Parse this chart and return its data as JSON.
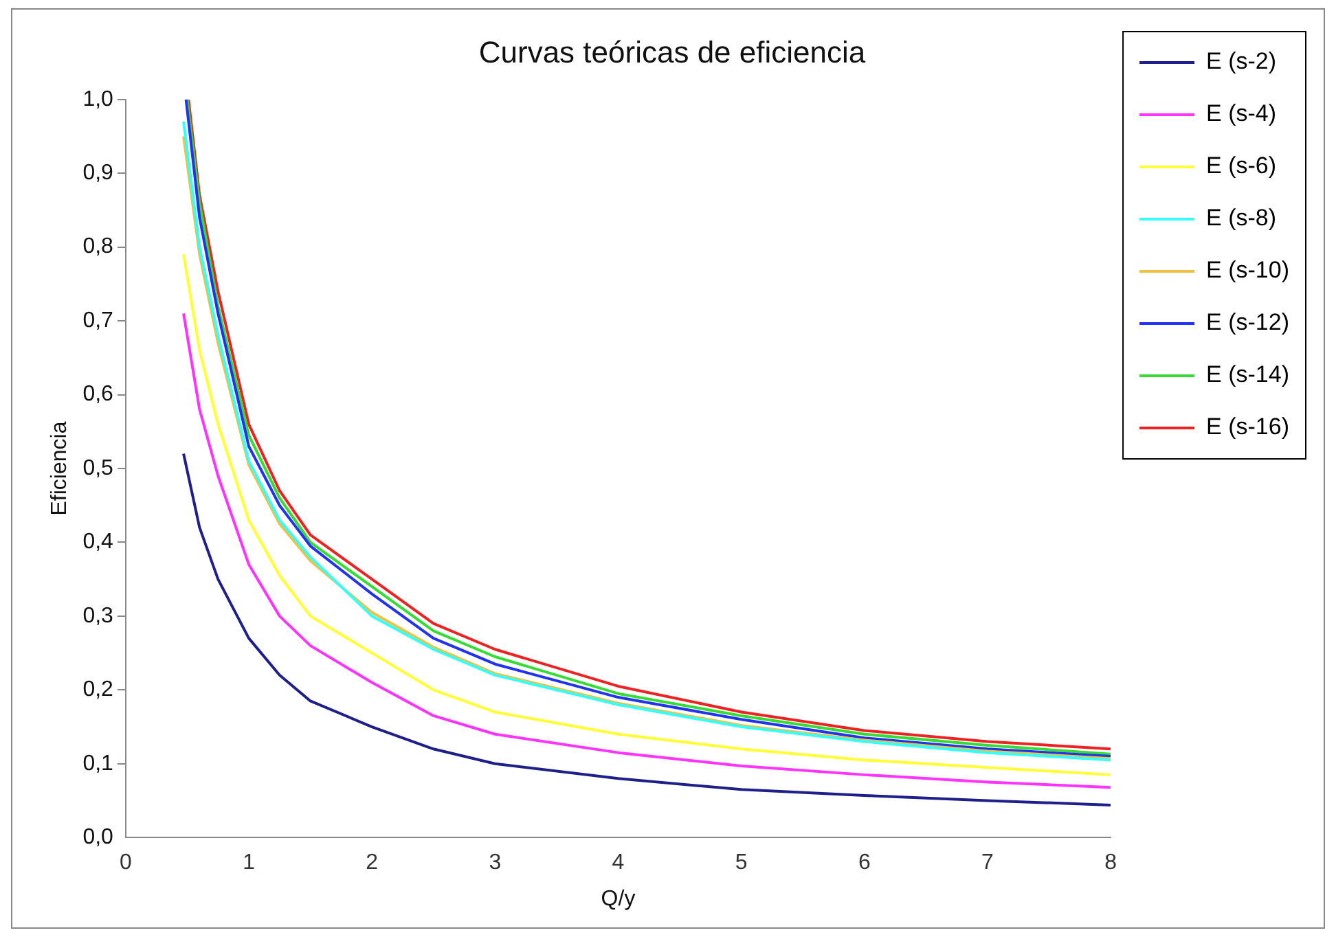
{
  "chart_data": {
    "type": "line",
    "title": "Curvas teóricas de eficiencia",
    "xlabel": "Q/y",
    "ylabel": "Eficiencia",
    "xlim": [
      0,
      8
    ],
    "xticks": [
      0,
      1,
      2,
      3,
      4,
      5,
      6,
      7,
      8
    ],
    "ylim": [
      0,
      1
    ],
    "yticks": [
      {
        "value": 0,
        "label": "0,0"
      },
      {
        "value": 0.1,
        "label": "0,1"
      },
      {
        "value": 0.2,
        "label": "0,2"
      },
      {
        "value": 0.3,
        "label": "0,3"
      },
      {
        "value": 0.4,
        "label": "0,4"
      },
      {
        "value": 0.5,
        "label": "0,5"
      },
      {
        "value": 0.6,
        "label": "0,6"
      },
      {
        "value": 0.7,
        "label": "0,7"
      },
      {
        "value": 0.8,
        "label": "0,8"
      },
      {
        "value": 0.9,
        "label": "0,9"
      },
      {
        "value": 1,
        "label": "1,0"
      }
    ],
    "grid": false,
    "legend": "right",
    "marker": "none",
    "line_style": "solid",
    "series": [
      {
        "name": "E (s-2)",
        "color": "#1f1f8c",
        "x": [
          0.47,
          0.6,
          0.75,
          1,
          1.25,
          1.5,
          2,
          2.5,
          3,
          4,
          5,
          6,
          7,
          8
        ],
        "values": [
          0.52,
          0.42,
          0.35,
          0.27,
          0.22,
          0.185,
          0.15,
          0.12,
          0.1,
          0.08,
          0.065,
          0.057,
          0.05,
          0.044
        ]
      },
      {
        "name": "E (s-4)",
        "color": "#ff33ff",
        "x": [
          0.47,
          0.6,
          0.75,
          1,
          1.25,
          1.5,
          2,
          2.5,
          3,
          4,
          5,
          6,
          7,
          8
        ],
        "values": [
          0.71,
          0.58,
          0.49,
          0.37,
          0.3,
          0.26,
          0.21,
          0.165,
          0.14,
          0.115,
          0.097,
          0.085,
          0.075,
          0.068
        ]
      },
      {
        "name": "E (s-6)",
        "color": "#ffff33",
        "x": [
          0.47,
          0.6,
          0.75,
          1,
          1.25,
          1.5,
          2,
          2.5,
          3,
          4,
          5,
          6,
          7,
          8
        ],
        "values": [
          0.79,
          0.66,
          0.56,
          0.43,
          0.355,
          0.3,
          0.25,
          0.2,
          0.17,
          0.14,
          0.12,
          0.105,
          0.095,
          0.085
        ]
      },
      {
        "name": "E (s-8)",
        "color": "#33ffff",
        "x": [
          0.47,
          0.6,
          0.75,
          1,
          1.25,
          1.5,
          2,
          2.5,
          3,
          4,
          5,
          6,
          7,
          8
        ],
        "values": [
          0.97,
          0.8,
          0.68,
          0.51,
          0.43,
          0.38,
          0.3,
          0.255,
          0.22,
          0.18,
          0.15,
          0.13,
          0.115,
          0.105
        ]
      },
      {
        "name": "E (s-10)",
        "color": "#f0c040",
        "x": [
          0.47,
          0.6,
          0.75,
          1,
          1.25,
          1.5,
          2,
          2.5,
          3,
          4,
          5,
          6,
          7,
          8
        ],
        "values": [
          0.95,
          0.79,
          0.67,
          0.505,
          0.425,
          0.375,
          0.305,
          0.258,
          0.222,
          0.182,
          0.152,
          0.132,
          0.117,
          0.107
        ]
      },
      {
        "name": "E (s-12)",
        "color": "#2233ee",
        "x": [
          0.49,
          0.6,
          0.75,
          1,
          1.25,
          1.5,
          2,
          2.5,
          3,
          4,
          5,
          6,
          7,
          8
        ],
        "values": [
          1.0,
          0.84,
          0.71,
          0.53,
          0.45,
          0.395,
          0.33,
          0.27,
          0.235,
          0.19,
          0.16,
          0.135,
          0.12,
          0.11
        ]
      },
      {
        "name": "E (s-14)",
        "color": "#33dd33",
        "x": [
          0.5,
          0.6,
          0.75,
          1,
          1.25,
          1.5,
          2,
          2.5,
          3,
          4,
          5,
          6,
          7,
          8
        ],
        "values": [
          1.0,
          0.86,
          0.72,
          0.545,
          0.46,
          0.4,
          0.34,
          0.28,
          0.245,
          0.195,
          0.165,
          0.14,
          0.125,
          0.113
        ]
      },
      {
        "name": "E (s-16)",
        "color": "#ee2222",
        "x": [
          0.51,
          0.6,
          0.75,
          1,
          1.25,
          1.5,
          2,
          2.5,
          3,
          4,
          5,
          6,
          7,
          8
        ],
        "values": [
          1.0,
          0.87,
          0.74,
          0.56,
          0.47,
          0.41,
          0.35,
          0.29,
          0.255,
          0.205,
          0.17,
          0.145,
          0.13,
          0.12
        ]
      }
    ]
  }
}
